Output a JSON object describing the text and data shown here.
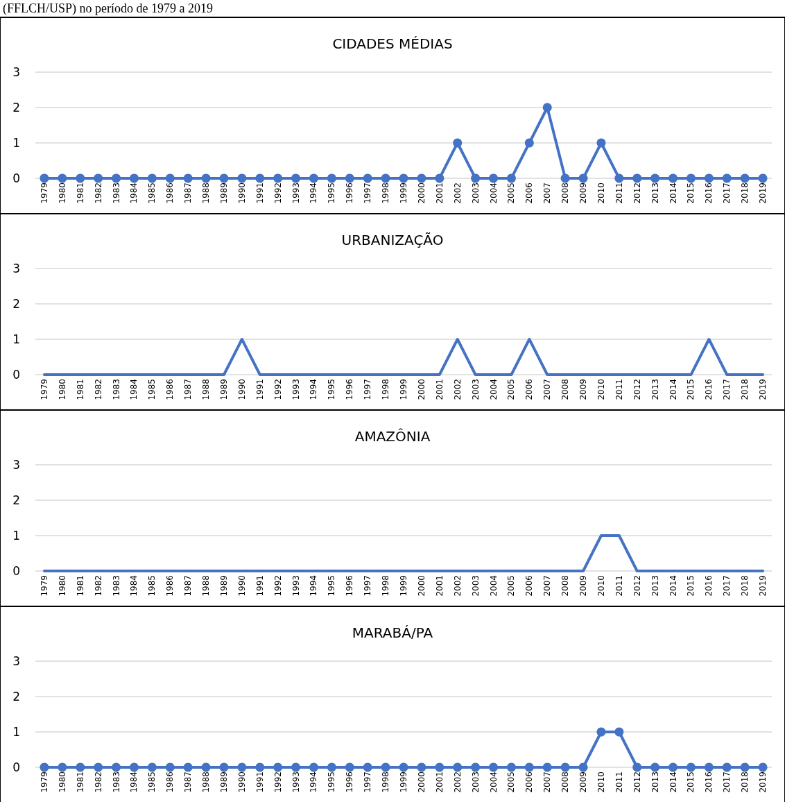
{
  "chart_data": [
    {
      "type": "line",
      "title": "CIDADES MÉDIAS",
      "annotations": [
        "(FFLCH/USP) no período de 1979 a 2019"
      ],
      "categories": [
        "1979",
        "1980",
        "1981",
        "1982",
        "1983",
        "1984",
        "1985",
        "1986",
        "1987",
        "1988",
        "1989",
        "1990",
        "1991",
        "1992",
        "1993",
        "1994",
        "1995",
        "1996",
        "1997",
        "1998",
        "1999",
        "2000",
        "2001",
        "2002",
        "2003",
        "2004",
        "2005",
        "2006",
        "2007",
        "2008",
        "2009",
        "2010",
        "2011",
        "2012",
        "2013",
        "2014",
        "2015",
        "2016",
        "2017",
        "2018",
        "2019"
      ],
      "series": [
        {
          "color": "#4472c4",
          "values": [
            0,
            0,
            0,
            0,
            0,
            0,
            0,
            0,
            0,
            0,
            0,
            0,
            0,
            0,
            0,
            0,
            0,
            0,
            0,
            0,
            0,
            0,
            0,
            1,
            0,
            0,
            0,
            1,
            2,
            0,
            0,
            1,
            0,
            0,
            0,
            0,
            0,
            0,
            0,
            0,
            0
          ]
        }
      ],
      "ylim": [
        0,
        3
      ],
      "yticks": [
        0,
        1,
        2,
        3
      ],
      "grid": "y",
      "marker": "circle"
    },
    {
      "type": "line",
      "title": "URBANIZAÇÃO",
      "categories": [
        "1979",
        "1980",
        "1981",
        "1982",
        "1983",
        "1984",
        "1985",
        "1986",
        "1987",
        "1988",
        "1989",
        "1990",
        "1991",
        "1992",
        "1993",
        "1994",
        "1995",
        "1996",
        "1997",
        "1998",
        "1999",
        "2000",
        "2001",
        "2002",
        "2003",
        "2004",
        "2005",
        "2006",
        "2007",
        "2008",
        "2009",
        "2010",
        "2011",
        "2012",
        "2013",
        "2014",
        "2015",
        "2016",
        "2017",
        "2018",
        "2019"
      ],
      "series": [
        {
          "color": "#4472c4",
          "values": [
            0,
            0,
            0,
            0,
            0,
            0,
            0,
            0,
            0,
            0,
            0,
            1,
            0,
            0,
            0,
            0,
            0,
            0,
            0,
            0,
            0,
            0,
            0,
            1,
            0,
            0,
            0,
            1,
            0,
            0,
            0,
            0,
            0,
            0,
            0,
            0,
            0,
            1,
            0,
            0,
            0
          ]
        }
      ],
      "ylim": [
        0,
        3
      ],
      "yticks": [
        0,
        1,
        2,
        3
      ],
      "grid": "y",
      "marker": "none"
    },
    {
      "type": "line",
      "title": "AMAZÔNIA",
      "categories": [
        "1979",
        "1980",
        "1981",
        "1982",
        "1983",
        "1984",
        "1985",
        "1986",
        "1987",
        "1988",
        "1989",
        "1990",
        "1991",
        "1992",
        "1993",
        "1994",
        "1995",
        "1996",
        "1997",
        "1998",
        "1999",
        "2000",
        "2001",
        "2002",
        "2003",
        "2004",
        "2005",
        "2006",
        "2007",
        "2008",
        "2009",
        "2010",
        "2011",
        "2012",
        "2013",
        "2014",
        "2015",
        "2016",
        "2017",
        "2018",
        "2019"
      ],
      "series": [
        {
          "color": "#4472c4",
          "values": [
            0,
            0,
            0,
            0,
            0,
            0,
            0,
            0,
            0,
            0,
            0,
            0,
            0,
            0,
            0,
            0,
            0,
            0,
            0,
            0,
            0,
            0,
            0,
            0,
            0,
            0,
            0,
            0,
            0,
            0,
            0,
            1,
            1,
            0,
            0,
            0,
            0,
            0,
            0,
            0,
            0
          ]
        }
      ],
      "ylim": [
        0,
        3
      ],
      "yticks": [
        0,
        1,
        2,
        3
      ],
      "grid": "y",
      "marker": "none"
    },
    {
      "type": "line",
      "title": "MARABÁ/PA",
      "categories": [
        "1979",
        "1980",
        "1981",
        "1982",
        "1983",
        "1984",
        "1985",
        "1986",
        "1987",
        "1988",
        "1989",
        "1990",
        "1991",
        "1992",
        "1993",
        "1994",
        "1995",
        "1996",
        "1997",
        "1998",
        "1999",
        "2000",
        "2001",
        "2002",
        "2003",
        "2004",
        "2005",
        "2006",
        "2007",
        "2008",
        "2009",
        "2010",
        "2011",
        "2012",
        "2013",
        "2014",
        "2015",
        "2016",
        "2017",
        "2018",
        "2019"
      ],
      "series": [
        {
          "color": "#4472c4",
          "values": [
            0,
            0,
            0,
            0,
            0,
            0,
            0,
            0,
            0,
            0,
            0,
            0,
            0,
            0,
            0,
            0,
            0,
            0,
            0,
            0,
            0,
            0,
            0,
            0,
            0,
            0,
            0,
            0,
            0,
            0,
            0,
            1,
            1,
            0,
            0,
            0,
            0,
            0,
            0,
            0,
            0
          ]
        }
      ],
      "ylim": [
        0,
        3
      ],
      "yticks": [
        0,
        1,
        2,
        3
      ],
      "grid": "y",
      "marker": "circle"
    }
  ]
}
